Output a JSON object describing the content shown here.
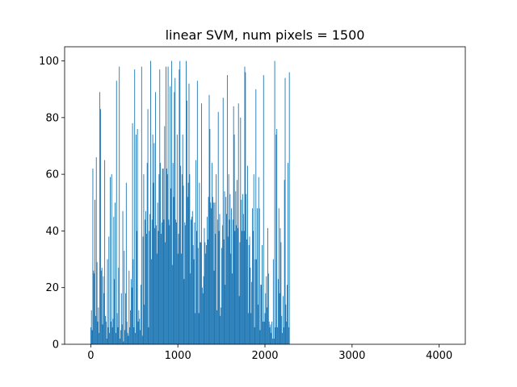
{
  "chart_data": {
    "type": "bar",
    "title": "linear SVM, num pixels = 1500",
    "xlabel": "",
    "ylabel": "",
    "xlim": [
      -300,
      4300
    ],
    "ylim": [
      0,
      105
    ],
    "xticks": [
      0,
      1000,
      2000,
      3000,
      4000
    ],
    "yticks": [
      0,
      20,
      40,
      60,
      80,
      100
    ],
    "grid": false,
    "legend": "none",
    "bar_color": "#1f77b4",
    "bar_width": 1,
    "x_start": 0,
    "x_step": 8,
    "values": [
      6,
      12,
      5,
      62,
      26,
      25,
      51,
      10,
      66,
      29,
      8,
      13,
      4,
      89,
      83,
      26,
      27,
      7,
      24,
      18,
      65,
      10,
      8,
      2,
      30,
      6,
      38,
      4,
      59,
      8,
      60,
      6,
      9,
      45,
      23,
      50,
      4,
      93,
      11,
      6,
      27,
      98,
      2,
      5,
      18,
      7,
      47,
      1,
      33,
      5,
      18,
      57,
      8,
      4,
      3,
      26,
      6,
      12,
      23,
      20,
      78,
      30,
      6,
      97,
      4,
      74,
      40,
      76,
      8,
      12,
      9,
      5,
      21,
      98,
      3,
      38,
      60,
      14,
      44,
      47,
      39,
      64,
      83,
      6,
      40,
      46,
      100,
      30,
      44,
      74,
      57,
      71,
      41,
      89,
      42,
      32,
      50,
      40,
      60,
      97,
      64,
      39,
      43,
      62,
      62,
      44,
      77,
      36,
      98,
      62,
      60,
      98,
      44,
      42,
      91,
      55,
      100,
      28,
      64,
      52,
      89,
      94,
      44,
      43,
      74,
      32,
      39,
      97,
      100,
      63,
      32,
      60,
      74,
      56,
      23,
      43,
      42,
      100,
      86,
      52,
      57,
      92,
      60,
      25,
      44,
      45,
      47,
      35,
      30,
      43,
      11,
      65,
      40,
      93,
      34,
      11,
      57,
      36,
      36,
      85,
      20,
      18,
      24,
      41,
      36,
      32,
      35,
      45,
      37,
      52,
      88,
      76,
      50,
      48,
      64,
      52,
      50,
      26,
      50,
      39,
      60,
      12,
      44,
      82,
      40,
      46,
      10,
      13,
      34,
      42,
      87,
      37,
      54,
      21,
      52,
      46,
      95,
      38,
      60,
      44,
      53,
      32,
      48,
      25,
      44,
      84,
      74,
      40,
      54,
      42,
      58,
      41,
      85,
      17,
      36,
      80,
      51,
      40,
      53,
      46,
      40,
      98,
      96,
      53,
      37,
      63,
      11,
      35,
      38,
      27,
      11,
      22,
      48,
      40,
      60,
      6,
      30,
      90,
      30,
      48,
      14,
      59,
      48,
      5,
      21,
      21,
      35,
      8,
      95,
      8,
      11,
      18,
      24,
      13,
      41,
      25,
      8,
      6,
      7,
      4,
      8,
      2,
      30,
      2,
      100,
      6,
      74,
      76,
      6,
      23,
      48,
      18,
      41,
      36,
      10,
      4,
      17,
      6,
      58,
      94,
      14,
      8,
      21,
      64,
      6,
      96
    ]
  }
}
